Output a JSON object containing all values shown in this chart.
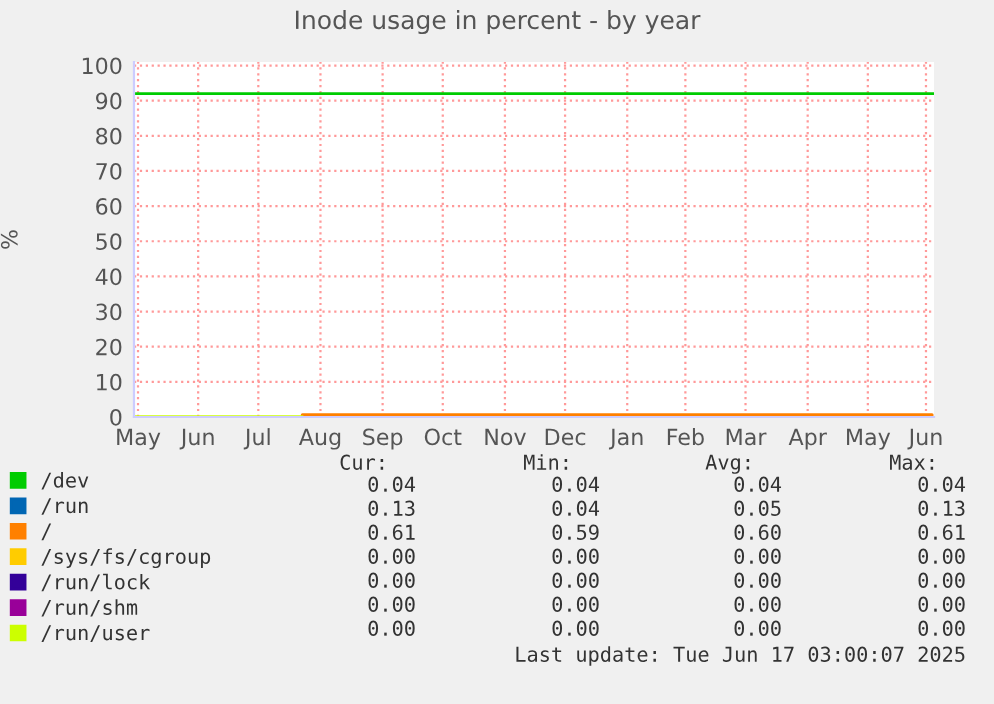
{
  "chart_data": {
    "type": "line",
    "title": "Inode usage in percent - by year",
    "ylabel": "%",
    "xlim": [
      "2024-05-15",
      "2025-06-18"
    ],
    "ylim": [
      0,
      101
    ],
    "xticks": [
      {
        "value": "2024-05-17",
        "label": "May"
      },
      {
        "value": "2024-06-16",
        "label": "Jun"
      },
      {
        "value": "2024-07-16",
        "label": "Jul"
      },
      {
        "value": "2024-08-16",
        "label": "Aug"
      },
      {
        "value": "2024-09-16",
        "label": "Sep"
      },
      {
        "value": "2024-10-16",
        "label": "Oct"
      },
      {
        "value": "2024-11-16",
        "label": "Nov"
      },
      {
        "value": "2024-12-16",
        "label": "Dec"
      },
      {
        "value": "2025-01-16",
        "label": "Jan"
      },
      {
        "value": "2025-02-14",
        "label": "Feb"
      },
      {
        "value": "2025-03-16",
        "label": "Mar"
      },
      {
        "value": "2025-04-16",
        "label": "Apr"
      },
      {
        "value": "2025-05-16",
        "label": "May"
      },
      {
        "value": "2025-06-14",
        "label": "Jun"
      }
    ],
    "yticks": [
      0,
      10,
      20,
      30,
      40,
      50,
      60,
      70,
      80,
      90,
      100
    ],
    "grid": true,
    "legend": "bottom",
    "ref_lines": [
      {
        "axis": "y",
        "value": 92,
        "color": "#00cc00"
      }
    ],
    "series": [
      {
        "name": "/dev",
        "color": "#00cc00"
      },
      {
        "name": "/run",
        "color": "#0066b3"
      },
      {
        "name": "/",
        "color": "#ff8000",
        "x": [
          "2024-08-07",
          "2025-06-17"
        ],
        "values": [
          0.6,
          0.6
        ]
      },
      {
        "name": "/sys/fs/cgroup",
        "color": "#ffcc00"
      },
      {
        "name": "/run/lock",
        "color": "#330099"
      },
      {
        "name": "/run/shm",
        "color": "#990099"
      },
      {
        "name": "/run/user",
        "color": "#ccff00",
        "x": [
          "2024-05-15",
          "2024-08-07"
        ],
        "values": [
          0,
          0
        ]
      }
    ],
    "annotations": [
      "Cur:",
      "Min:",
      "Avg:",
      "Max:",
      "0.04",
      "0.04",
      "0.04",
      "0.04",
      "0.13",
      "0.04",
      "0.05",
      "0.13",
      "0.61",
      "0.59",
      "0.60",
      "0.61",
      "0.00",
      "0.00",
      "0.00",
      "0.00",
      "0.00",
      "0.00",
      "0.00",
      "0.00",
      "0.00",
      "0.00",
      "0.00",
      "0.00",
      "0.00",
      "0.00",
      "0.00",
      "0.00",
      "Last update: Tue Jun 17 03:00:07 2025"
    ]
  }
}
